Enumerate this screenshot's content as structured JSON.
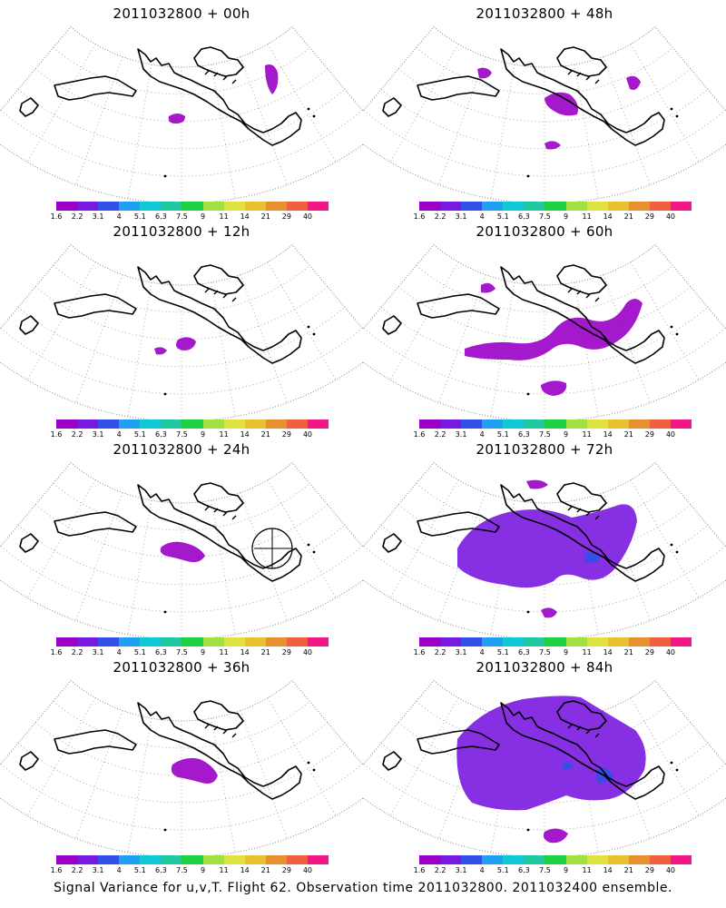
{
  "panels": [
    {
      "title": "2011032800 + 00h",
      "blobs": [
        "small"
      ]
    },
    {
      "title": "2011032800 + 12h",
      "blobs": [
        "small2"
      ]
    },
    {
      "title": "2011032800 + 24h",
      "blobs": [
        "band-small"
      ]
    },
    {
      "title": "2011032800 + 36h",
      "blobs": [
        "band-coast"
      ]
    },
    {
      "title": "2011032800 + 48h",
      "blobs": [
        "scatter"
      ]
    },
    {
      "title": "2011032800 + 60h",
      "blobs": [
        "band-mid"
      ]
    },
    {
      "title": "2011032800 + 72h",
      "blobs": [
        "band-large"
      ]
    },
    {
      "title": "2011032800 + 84h",
      "blobs": [
        "band-xlarge"
      ]
    }
  ],
  "colorbar": {
    "labels": [
      "1.6",
      "2.2",
      "3.1",
      "4",
      "5.1",
      "6.3",
      "7.5",
      "9",
      "11",
      "14",
      "21",
      "29",
      "40"
    ],
    "colors": [
      "#9b00c8",
      "#7a18e0",
      "#3050e8",
      "#20a0f0",
      "#10c8d8",
      "#20c8a0",
      "#20d040",
      "#a0e040",
      "#e0e040",
      "#e8c030",
      "#e89030",
      "#f06040",
      "#f01888"
    ]
  },
  "caption": "Signal Variance for u,v,T. Flight 62. Observation time 2011032800. 2011032400 ensemble."
}
